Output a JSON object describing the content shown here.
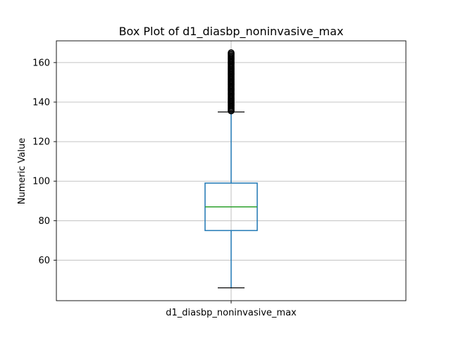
{
  "chart_data": {
    "type": "box",
    "title": "Box Plot of d1_diasbp_noninvasive_max",
    "xlabel": "",
    "ylabel": "Numeric Value",
    "categories": [
      "d1_diasbp_noninvasive_max"
    ],
    "ylim": [
      39.5,
      171
    ],
    "y_ticks": [
      60,
      80,
      100,
      120,
      140,
      160
    ],
    "grid": true,
    "box": {
      "whisker_low": 46,
      "q1": 75,
      "median": 87,
      "q3": 99,
      "whisker_high": 135,
      "outliers_min": 135.5,
      "outliers_max": 165
    },
    "colors": {
      "box": "#1f77b4",
      "median": "#2ca02c",
      "grid": "#b0b0b0",
      "outlier": "#000000"
    }
  }
}
